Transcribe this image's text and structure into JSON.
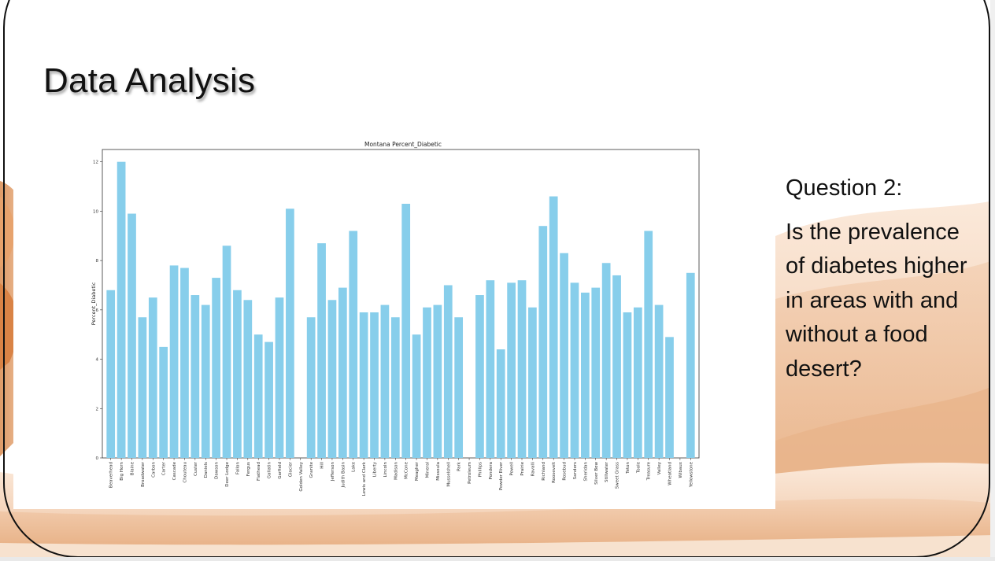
{
  "slide": {
    "title": "Data Analysis",
    "question_heading": "Question 2:",
    "question_body": "Is the prevalence of diabetes higher in areas with and without a food desert?"
  },
  "colors": {
    "bar": "#87ceeb",
    "desert_light": "#f6dcc6",
    "desert_mid": "#eab48a",
    "desert_dark": "#d88e56",
    "frame": "#111111"
  },
  "chart_data": {
    "type": "bar",
    "title": "Montana Percent_Diabetic",
    "xlabel": "",
    "ylabel": "Percent_Diabetic",
    "ylim": [
      0,
      12.5
    ],
    "yticks": [
      0,
      2,
      4,
      6,
      8,
      10,
      12
    ],
    "grid": false,
    "categories": [
      "Beaverhead",
      "Big Horn",
      "Blaine",
      "Broadwater",
      "Carbon",
      "Carter",
      "Cascade",
      "Chouteau",
      "Custer",
      "Daniels",
      "Dawson",
      "Deer Lodge",
      "Fallon",
      "Fergus",
      "Flathead",
      "Gallatin",
      "Garfield",
      "Glacier",
      "Golden Valley",
      "Granite",
      "Hill",
      "Jefferson",
      "Judith Basin",
      "Lake",
      "Lewis and Clark",
      "Liberty",
      "Lincoln",
      "Madison",
      "McCone",
      "Meagher",
      "Mineral",
      "Missoula",
      "Musselshell",
      "Park",
      "Petroleum",
      "Phillips",
      "Pondera",
      "Powder River",
      "Powell",
      "Prairie",
      "Ravalli",
      "Richland",
      "Roosevelt",
      "Rosebud",
      "Sanders",
      "Sheridan",
      "Silver Bow",
      "Stillwater",
      "Sweet Grass",
      "Teton",
      "Toole",
      "Treasure",
      "Valley",
      "Wheatland",
      "Wibaux",
      "Yellowstone"
    ],
    "values": [
      6.8,
      12.0,
      9.9,
      5.7,
      6.5,
      4.5,
      7.8,
      7.7,
      6.6,
      6.2,
      7.3,
      8.6,
      6.8,
      6.4,
      5.0,
      4.7,
      6.5,
      10.1,
      0,
      5.7,
      8.7,
      6.4,
      6.9,
      9.2,
      5.9,
      5.9,
      6.2,
      5.7,
      10.3,
      5.0,
      6.1,
      6.2,
      7.0,
      5.7,
      0,
      6.6,
      7.2,
      4.4,
      7.1,
      7.2,
      6.1,
      9.4,
      10.6,
      8.3,
      7.1,
      6.7,
      6.9,
      7.9,
      7.4,
      5.9,
      6.1,
      9.2,
      6.2,
      4.9,
      0,
      7.5
    ]
  }
}
